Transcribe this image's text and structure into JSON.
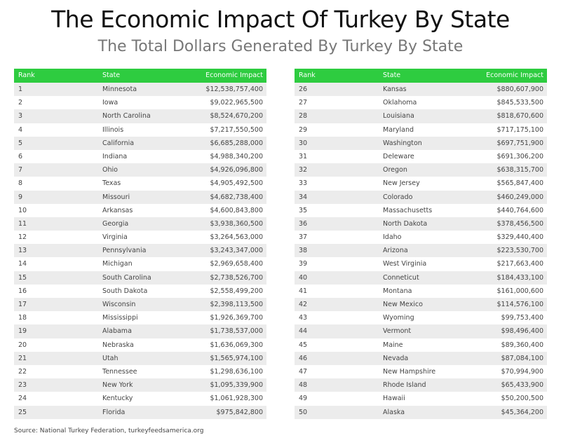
{
  "title": "The Economic Impact Of Turkey By State",
  "subtitle": "The Total Dollars Generated By Turkey By State",
  "headers": {
    "rank": "Rank",
    "state": "State",
    "impact": "Economic Impact"
  },
  "colors": {
    "header": "#2ecc40",
    "stripe": "#ececec"
  },
  "tables": [
    {
      "rows": [
        {
          "rank": "1",
          "state": "Minnesota",
          "impact": "$12,538,757,400"
        },
        {
          "rank": "2",
          "state": "Iowa",
          "impact": "$9,022,965,500"
        },
        {
          "rank": "3",
          "state": "North Carolina",
          "impact": "$8,524,670,200"
        },
        {
          "rank": "4",
          "state": "Illinois",
          "impact": "$7,217,550,500"
        },
        {
          "rank": "5",
          "state": "California",
          "impact": "$6,685,288,000"
        },
        {
          "rank": "6",
          "state": "Indiana",
          "impact": "$4,988,340,200"
        },
        {
          "rank": "7",
          "state": "Ohio",
          "impact": "$4,926,096,800"
        },
        {
          "rank": "8",
          "state": "Texas",
          "impact": "$4,905,492,500"
        },
        {
          "rank": "9",
          "state": "Missouri",
          "impact": "$4,682,738,400"
        },
        {
          "rank": "10",
          "state": "Arkansas",
          "impact": "$4,600,843,800"
        },
        {
          "rank": "11",
          "state": "Georgia",
          "impact": "$3,938,360,500"
        },
        {
          "rank": "12",
          "state": "Virginia",
          "impact": "$3,264,563,000"
        },
        {
          "rank": "13",
          "state": "Pennsylvania",
          "impact": "$3,243,347,000"
        },
        {
          "rank": "14",
          "state": "Michigan",
          "impact": "$2,969,658,400"
        },
        {
          "rank": "15",
          "state": "South Carolina",
          "impact": "$2,738,526,700"
        },
        {
          "rank": "16",
          "state": "South Dakota",
          "impact": "$2,558,499,200"
        },
        {
          "rank": "17",
          "state": "Wisconsin",
          "impact": "$2,398,113,500"
        },
        {
          "rank": "18",
          "state": "Mississippi",
          "impact": "$1,926,369,700"
        },
        {
          "rank": "19",
          "state": "Alabama",
          "impact": "$1,738,537,000"
        },
        {
          "rank": "20",
          "state": "Nebraska",
          "impact": "$1,636,069,300"
        },
        {
          "rank": "21",
          "state": "Utah",
          "impact": "$1,565,974,100"
        },
        {
          "rank": "22",
          "state": "Tennessee",
          "impact": "$1,298,636,100"
        },
        {
          "rank": "23",
          "state": "New York",
          "impact": "$1,095,339,900"
        },
        {
          "rank": "24",
          "state": "Kentucky",
          "impact": "$1,061,928,300"
        },
        {
          "rank": "25",
          "state": "Florida",
          "impact": "$975,842,800"
        }
      ]
    },
    {
      "rows": [
        {
          "rank": "26",
          "state": "Kansas",
          "impact": "$880,607,900"
        },
        {
          "rank": "27",
          "state": "Oklahoma",
          "impact": "$845,533,500"
        },
        {
          "rank": "28",
          "state": "Louisiana",
          "impact": "$818,670,600"
        },
        {
          "rank": "29",
          "state": "Maryland",
          "impact": "$717,175,100"
        },
        {
          "rank": "30",
          "state": "Washington",
          "impact": "$697,751,900"
        },
        {
          "rank": "31",
          "state": "Deleware",
          "impact": "$691,306,200"
        },
        {
          "rank": "32",
          "state": "Oregon",
          "impact": "$638,315,700"
        },
        {
          "rank": "33",
          "state": "New Jersey",
          "impact": "$565,847,400"
        },
        {
          "rank": "34",
          "state": "Colorado",
          "impact": "$460,249,000"
        },
        {
          "rank": "35",
          "state": "Massachusetts",
          "impact": "$440,764,600"
        },
        {
          "rank": "36",
          "state": "North Dakota",
          "impact": "$378,456,500"
        },
        {
          "rank": "37",
          "state": "Idaho",
          "impact": "$329,440,400"
        },
        {
          "rank": "38",
          "state": "Arizona",
          "impact": "$223,530,700"
        },
        {
          "rank": "39",
          "state": "West Virginia",
          "impact": "$217,663,400"
        },
        {
          "rank": "40",
          "state": "Conneticut",
          "impact": "$184,433,100"
        },
        {
          "rank": "41",
          "state": "Montana",
          "impact": "$161,000,600"
        },
        {
          "rank": "42",
          "state": "New Mexico",
          "impact": "$114,576,100"
        },
        {
          "rank": "43",
          "state": "Wyoming",
          "impact": "$99,753,400"
        },
        {
          "rank": "44",
          "state": "Vermont",
          "impact": "$98,496,400"
        },
        {
          "rank": "45",
          "state": "Maine",
          "impact": "$89,360,400"
        },
        {
          "rank": "46",
          "state": "Nevada",
          "impact": "$87,084,100"
        },
        {
          "rank": "47",
          "state": "New Hampshire",
          "impact": "$70,994,900"
        },
        {
          "rank": "48",
          "state": "Rhode Island",
          "impact": "$65,433,900"
        },
        {
          "rank": "49",
          "state": "Hawaii",
          "impact": "$50,200,500"
        },
        {
          "rank": "50",
          "state": "Alaska",
          "impact": "$45,364,200"
        }
      ]
    }
  ],
  "source": "Source: National Turkey Federation, turkeyfeedsamerica.org"
}
